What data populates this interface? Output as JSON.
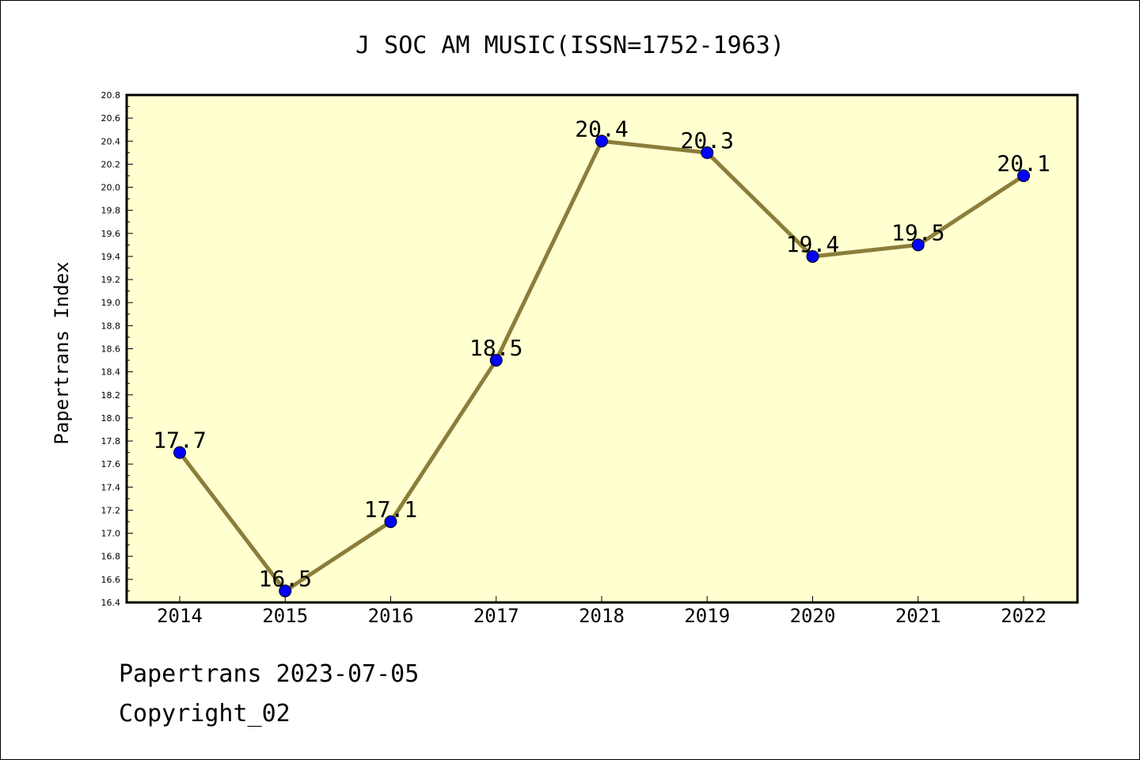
{
  "chart_data": {
    "type": "line",
    "title": "J SOC AM MUSIC(ISSN=1752-1963)",
    "xlabel": "",
    "ylabel": "Papertrans Index",
    "categories": [
      "2014",
      "2015",
      "2016",
      "2017",
      "2018",
      "2019",
      "2020",
      "2021",
      "2022"
    ],
    "values": [
      17.7,
      16.5,
      17.1,
      18.5,
      20.4,
      20.3,
      19.4,
      19.5,
      20.1
    ],
    "data_labels": [
      "17.7",
      "16.5",
      "17.1",
      "18.5",
      "20.4",
      "20.3",
      "19.4",
      "19.5",
      "20.1"
    ],
    "ylim": [
      16.4,
      20.8
    ],
    "y_ticks": [
      "16.4",
      "16.6",
      "16.8",
      "17.0",
      "17.2",
      "17.4",
      "17.6",
      "17.8",
      "18.0",
      "18.2",
      "18.4",
      "18.6",
      "18.8",
      "19.0",
      "19.2",
      "19.4",
      "19.6",
      "19.8",
      "20.0",
      "20.2",
      "20.4",
      "20.6",
      "20.8"
    ],
    "grid": false,
    "legend": "none",
    "colors": {
      "plot_background": "#ffffd0",
      "line": "#8b7d3a",
      "marker": "#0000ff"
    }
  },
  "footer": {
    "line1": "Papertrans 2023-07-05",
    "line2": "Copyright_02"
  }
}
